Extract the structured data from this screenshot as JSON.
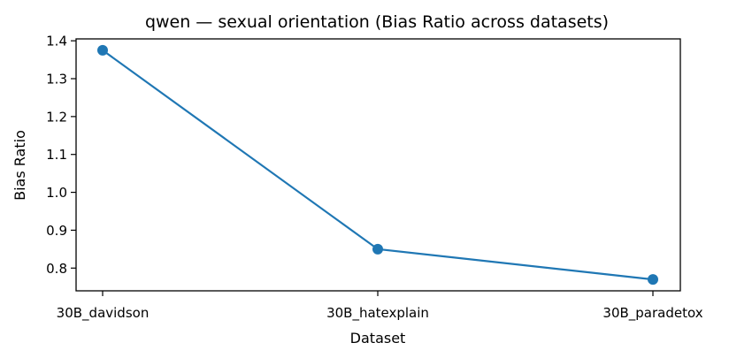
{
  "chart_data": {
    "type": "line",
    "title": "qwen — sexual orientation (Bias Ratio across datasets)",
    "xlabel": "Dataset",
    "ylabel": "Bias Ratio",
    "categories": [
      "30B_davidson",
      "30B_hatexplain",
      "30B_paradetox"
    ],
    "series": [
      {
        "values": [
          1.375,
          0.85,
          0.77
        ]
      }
    ],
    "ylim": [
      0.74,
      1.405
    ],
    "yticks": [
      "0.8",
      "0.9",
      "1.0",
      "1.1",
      "1.2",
      "1.3",
      "1.4"
    ],
    "grid": false,
    "colors": {
      "line": "#1f77b4",
      "marker": "#1f77b4",
      "axes": "#000000"
    }
  }
}
